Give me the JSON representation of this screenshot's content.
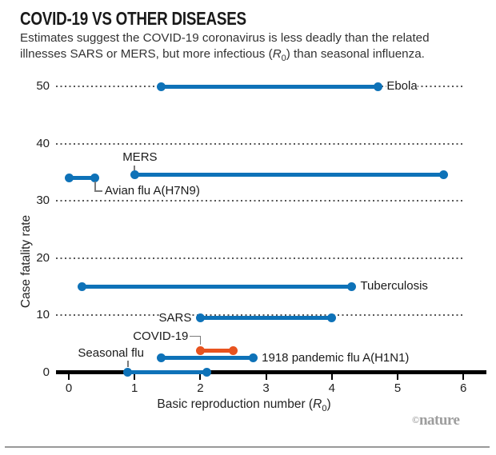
{
  "header": {
    "title": "COVID-19 VS OTHER DISEASES",
    "subtitle_line1": "Estimates suggest the COVID-19 coronavirus is less deadly than the related",
    "subtitle_line2_pre": "illnesses SARS or MERS, but more infectious (",
    "subtitle_r": "R",
    "subtitle_sub": "0",
    "subtitle_line2_post": ") than seasonal influenza."
  },
  "chart_data": {
    "type": "dumbbell-range",
    "title": "COVID-19 VS OTHER DISEASES",
    "xlabel_pre": "Basic reproduction number (",
    "xlabel_r": "R",
    "xlabel_sub": "0",
    "xlabel_post": ")",
    "ylabel": "Case fatality rate",
    "xlim": [
      0,
      6
    ],
    "ylim": [
      0,
      52
    ],
    "x_ticks": [
      0,
      1,
      2,
      3,
      4,
      5,
      6
    ],
    "y_ticks": [
      0,
      10,
      20,
      30,
      40,
      50
    ],
    "grid": "horizontal dotted lines at each y tick, x axis solid black",
    "colors": {
      "default": "#0e72b8",
      "highlight": "#e8531f"
    },
    "series": [
      {
        "name": "Ebola",
        "cfr": 50,
        "r0": [
          1.4,
          4.7
        ],
        "color": "default",
        "label_pos": "right-end"
      },
      {
        "name": "MERS",
        "cfr": 34.5,
        "r0": [
          1.0,
          5.7
        ],
        "color": "default",
        "label_pos": "above-start"
      },
      {
        "name": "Avian flu A(H7N9)",
        "cfr": 34,
        "r0": [
          0.0,
          0.4
        ],
        "color": "default",
        "label_pos": "elbow-below-end"
      },
      {
        "name": "Tuberculosis",
        "cfr": 15,
        "r0": [
          0.2,
          4.3
        ],
        "color": "default",
        "label_pos": "right-end"
      },
      {
        "name": "SARS",
        "cfr": 9.5,
        "r0": [
          2.0,
          4.0
        ],
        "color": "default",
        "label_pos": "left-start"
      },
      {
        "name": "COVID-19",
        "cfr": 3.8,
        "r0": [
          2.0,
          2.5
        ],
        "color": "highlight",
        "label_pos": "elbow-above-start"
      },
      {
        "name": "1918 pandemic flu A(H1N1)",
        "cfr": 2.5,
        "r0": [
          1.4,
          2.8
        ],
        "color": "default",
        "label_pos": "right-end"
      },
      {
        "name": "Seasonal flu",
        "cfr": 0,
        "r0": [
          0.9,
          2.1
        ],
        "color": "default",
        "label_pos": "above-start-left"
      }
    ]
  },
  "credit": {
    "copyright": "©",
    "brand": "nature"
  }
}
